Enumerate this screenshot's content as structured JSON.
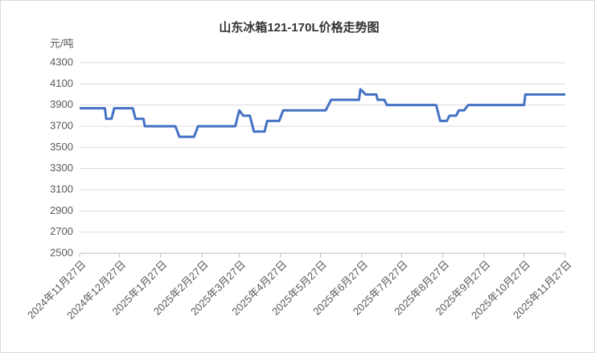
{
  "chart_data": {
    "type": "line",
    "title": "山东冰箱121-170L价格走势图",
    "y_label": "元/吨",
    "x": [
      "2024-11-27",
      "2024-12-16",
      "2024-12-17",
      "2024-12-21",
      "2024-12-23",
      "2025-01-06",
      "2025-01-08",
      "2025-01-14",
      "2025-01-15",
      "2025-02-07",
      "2025-02-10",
      "2025-02-21",
      "2025-02-24",
      "2025-03-24",
      "2025-03-25",
      "2025-03-27",
      "2025-03-30",
      "2025-04-04",
      "2025-04-07",
      "2025-04-15",
      "2025-04-17",
      "2025-04-26",
      "2025-04-29",
      "2025-05-31",
      "2025-06-04",
      "2025-06-25",
      "2025-06-26",
      "2025-06-30",
      "2025-07-08",
      "2025-07-09",
      "2025-07-14",
      "2025-07-16",
      "2025-08-22",
      "2025-08-25",
      "2025-08-30",
      "2025-09-01",
      "2025-09-06",
      "2025-09-08",
      "2025-09-12",
      "2025-09-15",
      "2025-10-27",
      "2025-10-28",
      "2025-11-27"
    ],
    "values": [
      3870,
      3870,
      3770,
      3770,
      3870,
      3870,
      3770,
      3770,
      3700,
      3700,
      3600,
      3600,
      3700,
      3700,
      3750,
      3850,
      3800,
      3800,
      3650,
      3650,
      3750,
      3750,
      3850,
      3850,
      3950,
      3950,
      4050,
      4000,
      4000,
      3950,
      3950,
      3900,
      3900,
      3750,
      3750,
      3800,
      3800,
      3850,
      3850,
      3900,
      3900,
      4000,
      4000
    ],
    "color": "#4472c4",
    "xlim": [
      "2024-11-27",
      "2025-11-27"
    ],
    "xticks": [
      {
        "value": "2024-11-27",
        "label": "2024年11月27日"
      },
      {
        "value": "2024-12-27",
        "label": "2024年12月27日"
      },
      {
        "value": "2025-01-27",
        "label": "2025年1月27日"
      },
      {
        "value": "2025-02-27",
        "label": "2025年2月27日"
      },
      {
        "value": "2025-03-27",
        "label": "2025年3月27日"
      },
      {
        "value": "2025-04-27",
        "label": "2025年4月27日"
      },
      {
        "value": "2025-05-27",
        "label": "2025年5月27日"
      },
      {
        "value": "2025-06-27",
        "label": "2025年6月27日"
      },
      {
        "value": "2025-07-27",
        "label": "2025年7月27日"
      },
      {
        "value": "2025-08-27",
        "label": "2025年8月27日"
      },
      {
        "value": "2025-09-27",
        "label": "2025年9月27日"
      },
      {
        "value": "2025-10-27",
        "label": "2025年10月27日"
      },
      {
        "value": "2025-11-27",
        "label": "2025年11月27日"
      }
    ],
    "ylim": [
      2500,
      4300
    ],
    "yticks": [
      2500,
      2700,
      2900,
      3100,
      3300,
      3500,
      3700,
      3900,
      4100,
      4300
    ],
    "grid": true
  }
}
